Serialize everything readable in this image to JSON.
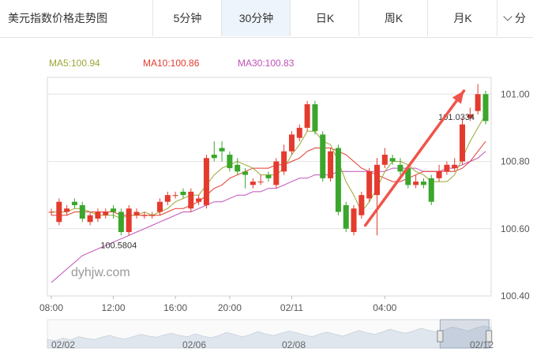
{
  "header": {
    "title": "美元指数价格走势图",
    "tabs": [
      {
        "label": "5分钟",
        "active": false
      },
      {
        "label": "30分钟",
        "active": true
      },
      {
        "label": "日K",
        "active": false
      },
      {
        "label": "周K",
        "active": false
      },
      {
        "label": "月K",
        "active": false
      }
    ],
    "more_label": "分"
  },
  "indicators": {
    "ma5": "MA5:100.94",
    "ma10": "MA10:100.86",
    "ma30": "MA30:100.83"
  },
  "colors": {
    "up": "#e33b2e",
    "down": "#3aa62b",
    "ma5": "#9ba634",
    "ma10": "#e33b2e",
    "ma30": "#c050b8",
    "arrow": "#f0544a",
    "active_tab_bg": "#eef4fb"
  },
  "chart_data": {
    "type": "candlestick",
    "ylim": [
      100.4,
      101.05
    ],
    "y_ticks": [
      "101.00",
      "100.80",
      "100.60",
      "100.40"
    ],
    "x_ticks": [
      "08:00",
      "12:00",
      "16:00",
      "20:00",
      "02/11",
      "04:00"
    ],
    "annotations": {
      "high": "101.0334",
      "low": "100.5804"
    },
    "watermark": "dyhjw.com",
    "nav_labels": [
      "02/02",
      "02/06",
      "02/08",
      "02/12"
    ],
    "candles": [
      [
        100.65,
        100.65,
        100.66,
        100.64
      ],
      [
        100.62,
        100.68,
        100.69,
        100.61
      ],
      [
        100.65,
        100.66,
        100.67,
        100.64
      ],
      [
        100.68,
        100.67,
        100.69,
        100.66
      ],
      [
        100.67,
        100.63,
        100.68,
        100.62
      ],
      [
        100.62,
        100.64,
        100.65,
        100.61
      ],
      [
        100.63,
        100.65,
        100.66,
        100.62
      ],
      [
        100.64,
        100.65,
        100.66,
        100.63
      ],
      [
        100.66,
        100.65,
        100.67,
        100.63
      ],
      [
        100.65,
        100.59,
        100.66,
        100.58
      ],
      [
        100.59,
        100.66,
        100.67,
        100.58
      ],
      [
        100.64,
        100.65,
        100.66,
        100.63
      ],
      [
        100.64,
        100.64,
        100.65,
        100.63
      ],
      [
        100.64,
        100.64,
        100.65,
        100.63
      ],
      [
        100.65,
        100.68,
        100.69,
        100.64
      ],
      [
        100.68,
        100.7,
        100.71,
        100.67
      ],
      [
        100.7,
        100.7,
        100.71,
        100.69
      ],
      [
        100.71,
        100.7,
        100.72,
        100.69
      ],
      [
        100.66,
        100.71,
        100.72,
        100.65
      ],
      [
        100.68,
        100.69,
        100.7,
        100.67
      ],
      [
        100.67,
        100.81,
        100.82,
        100.66
      ],
      [
        100.82,
        100.81,
        100.86,
        100.8
      ],
      [
        100.84,
        100.83,
        100.86,
        100.8
      ],
      [
        100.82,
        100.78,
        100.83,
        100.77
      ],
      [
        100.79,
        100.77,
        100.81,
        100.76
      ],
      [
        100.77,
        100.76,
        100.78,
        100.72
      ],
      [
        100.73,
        100.74,
        100.75,
        100.72
      ],
      [
        100.74,
        100.74,
        100.76,
        100.73
      ],
      [
        100.76,
        100.75,
        100.77,
        100.74
      ],
      [
        100.73,
        100.8,
        100.81,
        100.72
      ],
      [
        100.77,
        100.83,
        100.85,
        100.76
      ],
      [
        100.83,
        100.88,
        100.89,
        100.82
      ],
      [
        100.87,
        100.9,
        100.91,
        100.86
      ],
      [
        100.9,
        100.97,
        100.98,
        100.89
      ],
      [
        100.97,
        100.89,
        100.98,
        100.88
      ],
      [
        100.88,
        100.75,
        100.89,
        100.74
      ],
      [
        100.75,
        100.83,
        100.84,
        100.74
      ],
      [
        100.84,
        100.65,
        100.85,
        100.64
      ],
      [
        100.67,
        100.6,
        100.68,
        100.59
      ],
      [
        100.59,
        100.66,
        100.67,
        100.58
      ],
      [
        100.64,
        100.7,
        100.71,
        100.63
      ],
      [
        100.69,
        100.77,
        100.78,
        100.68
      ],
      [
        100.7,
        100.79,
        100.81,
        100.58
      ],
      [
        100.79,
        100.82,
        100.84,
        100.78
      ],
      [
        100.81,
        100.8,
        100.82,
        100.79
      ],
      [
        100.79,
        100.77,
        100.81,
        100.76
      ],
      [
        100.78,
        100.73,
        100.79,
        100.72
      ],
      [
        100.73,
        100.74,
        100.76,
        100.72
      ],
      [
        100.74,
        100.73,
        100.75,
        100.72
      ],
      [
        100.75,
        100.68,
        100.76,
        100.67
      ],
      [
        100.75,
        100.77,
        100.79,
        100.74
      ],
      [
        100.77,
        100.79,
        100.8,
        100.76
      ],
      [
        100.78,
        100.79,
        100.81,
        100.77
      ],
      [
        100.8,
        100.91,
        100.93,
        100.79
      ],
      [
        100.93,
        100.94,
        100.96,
        100.92
      ],
      [
        100.95,
        101.0,
        101.03,
        100.94
      ],
      [
        101.0,
        100.92,
        101.01,
        100.91
      ]
    ],
    "ma5": [
      100.65,
      100.65,
      100.65,
      100.66,
      100.66,
      100.65,
      100.64,
      100.64,
      100.64,
      100.63,
      100.64,
      100.64,
      100.65,
      100.64,
      100.65,
      100.66,
      100.68,
      100.69,
      100.7,
      100.7,
      100.73,
      100.76,
      100.78,
      100.79,
      100.8,
      100.79,
      100.78,
      100.76,
      100.76,
      100.76,
      100.78,
      100.82,
      100.85,
      100.89,
      100.89,
      100.86,
      100.85,
      100.8,
      100.74,
      100.7,
      100.65,
      100.68,
      100.72,
      100.77,
      100.8,
      100.8,
      100.79,
      100.77,
      100.76,
      100.74,
      100.74,
      100.74,
      100.76,
      100.81,
      100.86,
      100.9,
      100.94
    ],
    "ma10": [
      100.64,
      100.64,
      100.64,
      100.65,
      100.65,
      100.65,
      100.65,
      100.65,
      100.65,
      100.64,
      100.64,
      100.64,
      100.64,
      100.64,
      100.64,
      100.65,
      100.66,
      100.66,
      100.67,
      100.68,
      100.7,
      100.72,
      100.73,
      100.75,
      100.76,
      100.77,
      100.78,
      100.78,
      100.78,
      100.79,
      100.79,
      100.8,
      100.81,
      100.83,
      100.84,
      100.84,
      100.84,
      100.83,
      100.82,
      100.8,
      100.78,
      100.77,
      100.76,
      100.75,
      100.74,
      100.74,
      100.75,
      100.76,
      100.77,
      100.77,
      100.77,
      100.77,
      100.77,
      100.78,
      100.8,
      100.83,
      100.86
    ],
    "ma30": [
      100.44,
      100.46,
      100.48,
      100.5,
      100.52,
      100.53,
      100.54,
      100.55,
      100.56,
      100.57,
      100.58,
      100.59,
      100.6,
      100.61,
      100.62,
      100.63,
      100.64,
      100.65,
      100.65,
      100.66,
      100.67,
      100.68,
      100.68,
      100.69,
      100.7,
      100.7,
      100.71,
      100.71,
      100.72,
      100.72,
      100.73,
      100.74,
      100.75,
      100.75,
      100.76,
      100.76,
      100.76,
      100.77,
      100.77,
      100.77,
      100.77,
      100.77,
      100.77,
      100.77,
      100.78,
      100.78,
      100.78,
      100.78,
      100.77,
      100.77,
      100.77,
      100.78,
      100.78,
      100.79,
      100.8,
      100.81,
      100.83
    ],
    "navigator": [
      0.3,
      0.26,
      0.35,
      0.28,
      0.4,
      0.34,
      0.3,
      0.38,
      0.45,
      0.36,
      0.32,
      0.4,
      0.48,
      0.42,
      0.38,
      0.46,
      0.52,
      0.44,
      0.4,
      0.5,
      0.42,
      0.36,
      0.44,
      0.55,
      0.48,
      0.4,
      0.46,
      0.58,
      0.5,
      0.44,
      0.52,
      0.6,
      0.54,
      0.46,
      0.4,
      0.5,
      0.56,
      0.48,
      0.42,
      0.52,
      0.62,
      0.54,
      0.48,
      0.56,
      0.66,
      0.58,
      0.52,
      0.6,
      0.7,
      0.62,
      0.56,
      0.64,
      0.74,
      0.68,
      0.6,
      0.7,
      0.78,
      0.72
    ],
    "nav_window": [
      0.885,
      0.995
    ]
  }
}
